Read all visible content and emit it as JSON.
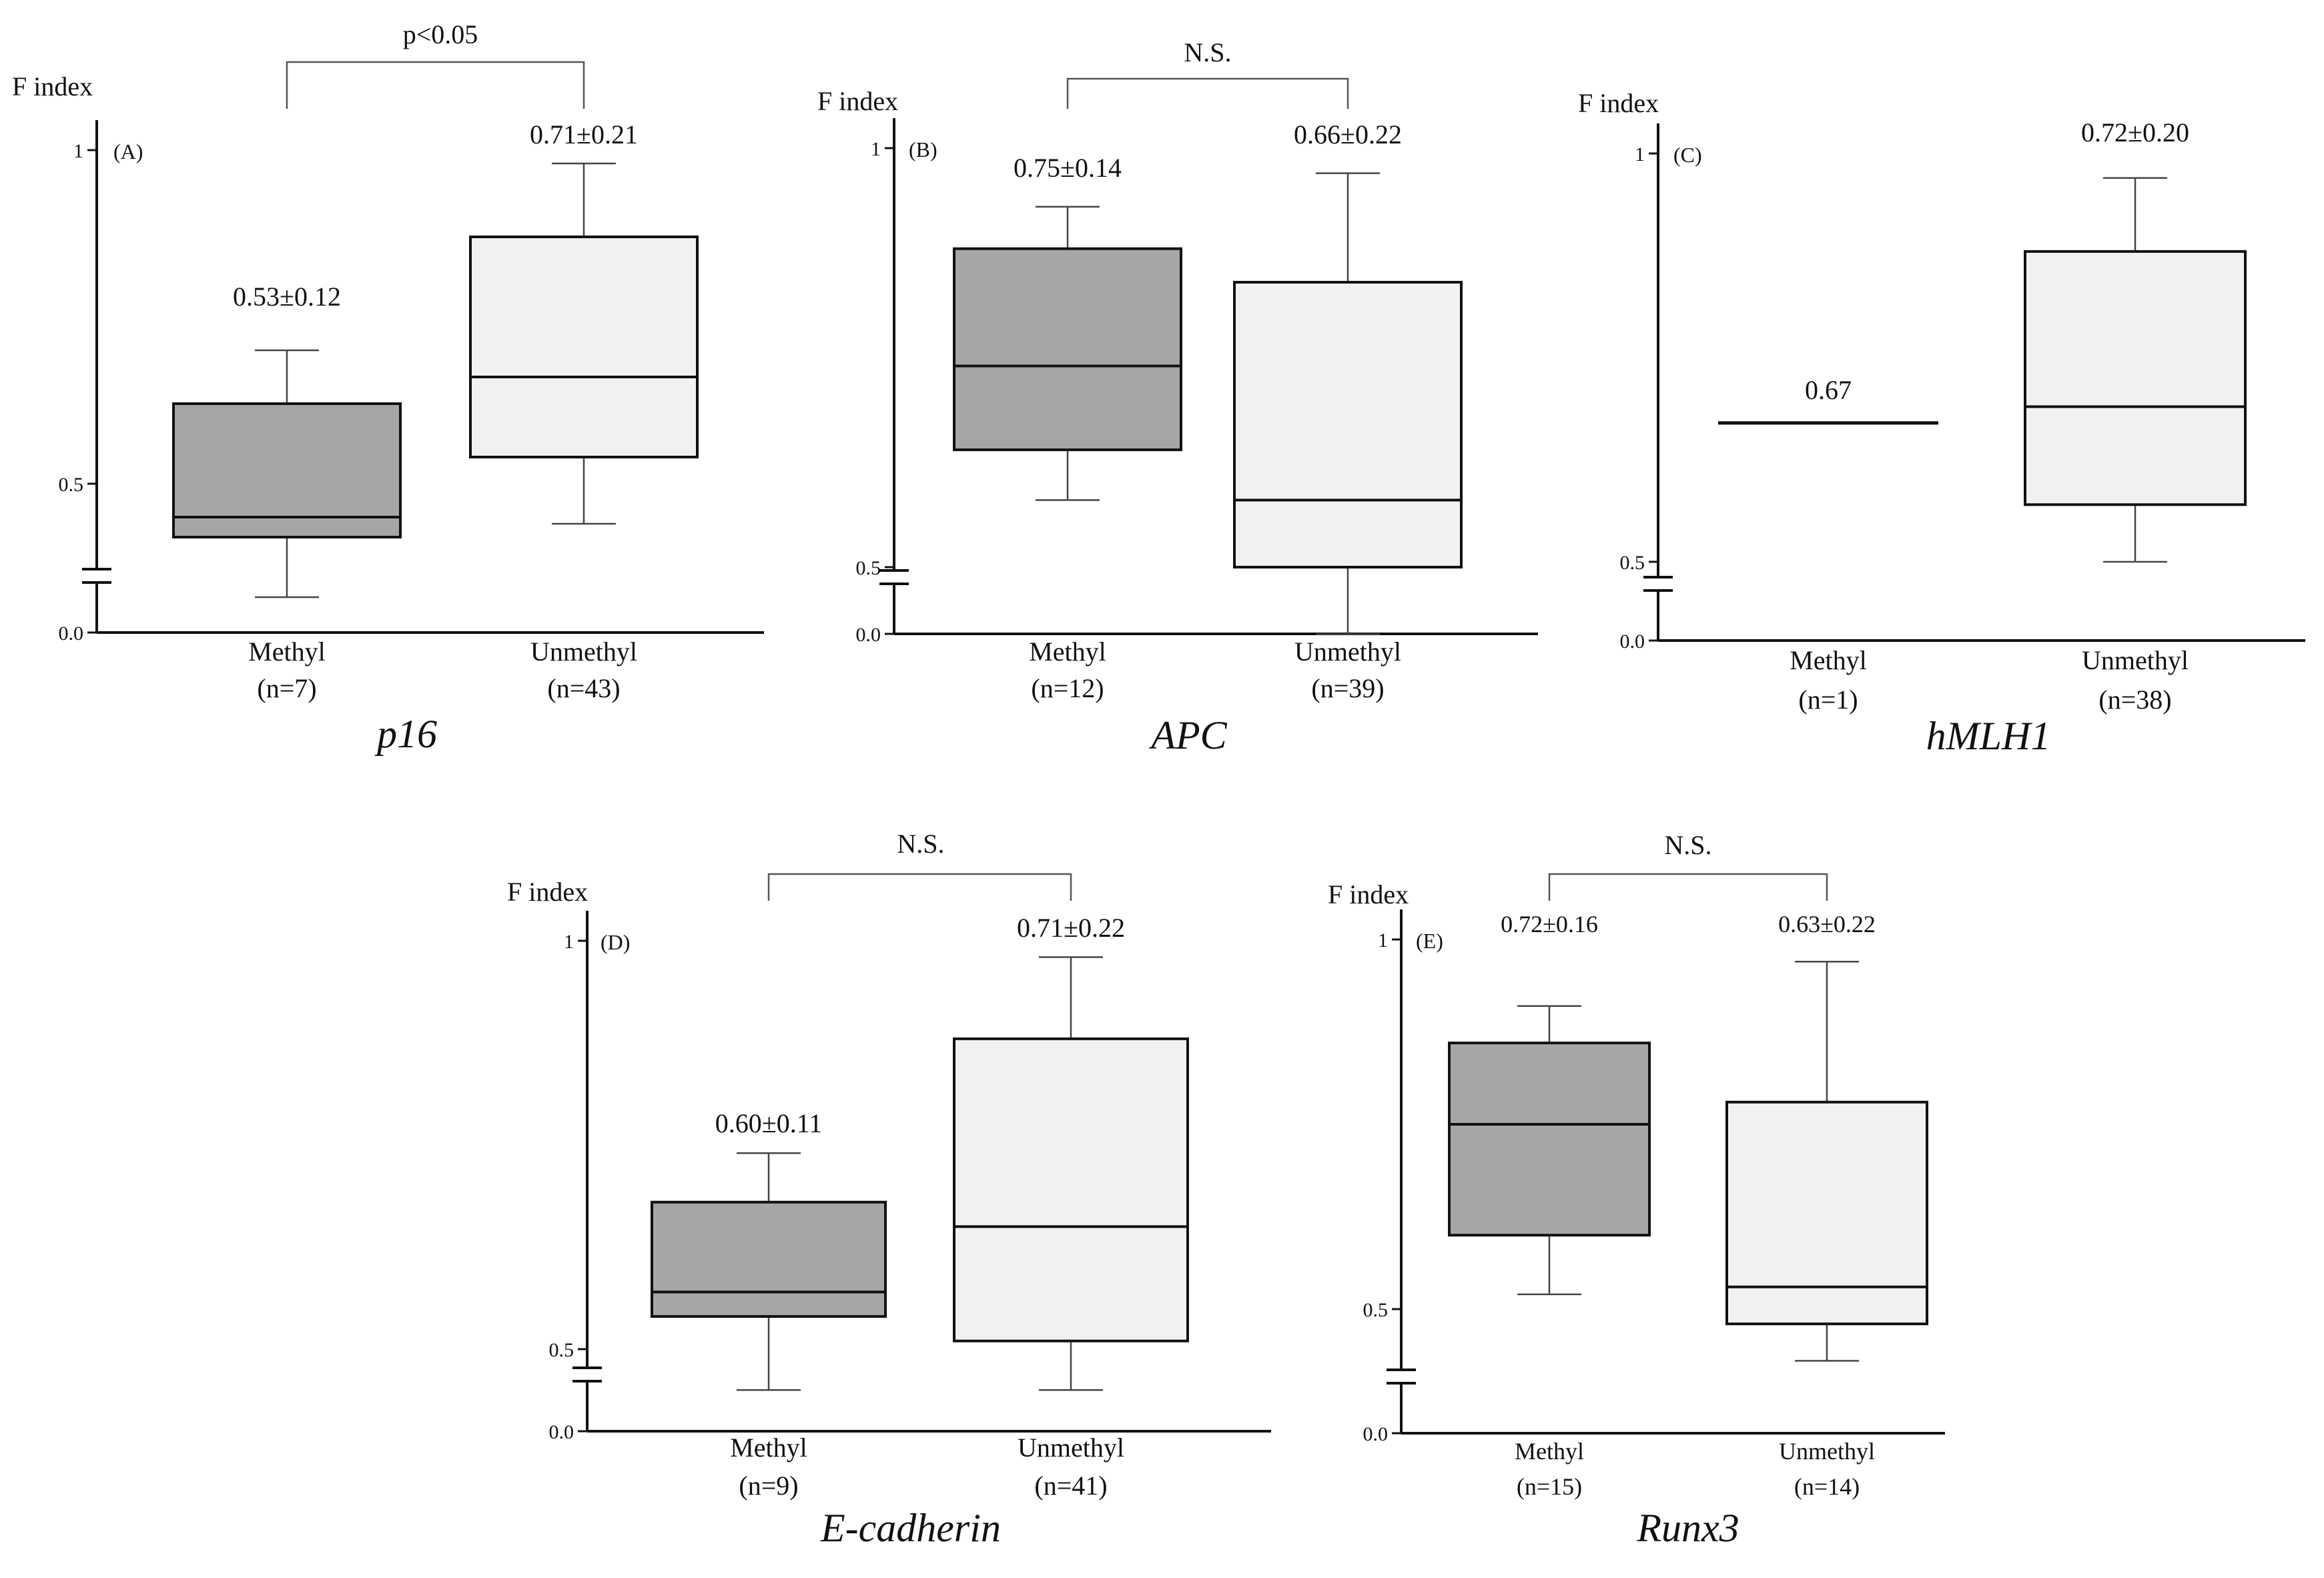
{
  "figure": {
    "ylabel": "F index"
  },
  "colors": {
    "methyl_fill": "#a6a6a6",
    "unmethyl_fill": "#f1f1f1",
    "stroke": "#111111",
    "bracket": "#555555"
  },
  "chart_data": [
    {
      "type": "box",
      "panel_label": "(A)",
      "gene": "p16",
      "ylabel": "F index",
      "yticks": [
        "1",
        "0.5",
        "0.0"
      ],
      "significance": "p<0.05",
      "axis_break": true,
      "groups": [
        {
          "name": "Methyl",
          "n_label": "(n=7)",
          "annotation": "0.53±0.12",
          "whisker_low": 0.33,
          "q1": 0.42,
          "median": 0.45,
          "q3": 0.62,
          "whisker_high": 0.7
        },
        {
          "name": "Unmethyl",
          "n_label": "(n=43)",
          "annotation": "0.71±0.21",
          "whisker_low": 0.44,
          "q1": 0.54,
          "median": 0.66,
          "q3": 0.87,
          "whisker_high": 0.98
        }
      ]
    },
    {
      "type": "box",
      "panel_label": "(B)",
      "gene": "APC",
      "ylabel": "F index",
      "yticks": [
        "1",
        "0.5",
        "0.0"
      ],
      "significance": "N.S.",
      "axis_break": true,
      "groups": [
        {
          "name": "Methyl",
          "n_label": "(n=12)",
          "annotation": "0.75±0.14",
          "whisker_low": 0.58,
          "q1": 0.64,
          "median": 0.74,
          "q3": 0.88,
          "whisker_high": 0.93
        },
        {
          "name": "Unmethyl",
          "n_label": "(n=39)",
          "annotation": "0.66±0.22",
          "whisker_low": 0.42,
          "q1": 0.5,
          "median": 0.58,
          "q3": 0.84,
          "whisker_high": 0.97
        }
      ]
    },
    {
      "type": "box",
      "panel_label": "(C)",
      "gene": "hMLH1",
      "ylabel": "F index",
      "yticks": [
        "1",
        "0.5",
        "0.0"
      ],
      "significance": "",
      "axis_break": true,
      "groups": [
        {
          "name": "Methyl",
          "n_label": "(n=1)",
          "annotation": "0.67",
          "single_value": 0.67
        },
        {
          "name": "Unmethyl",
          "n_label": "(n=38)",
          "annotation": "0.72±0.20",
          "whisker_low": 0.5,
          "q1": 0.57,
          "median": 0.69,
          "q3": 0.88,
          "whisker_high": 0.97
        }
      ]
    },
    {
      "type": "box",
      "panel_label": "(D)",
      "gene": "E-cadherin",
      "ylabel": "F index",
      "yticks": [
        "1",
        "0.5",
        "0.0"
      ],
      "significance": "N.S.",
      "axis_break": true,
      "groups": [
        {
          "name": "Methyl",
          "n_label": "(n=9)",
          "annotation": "0.60±0.11",
          "whisker_low": 0.45,
          "q1": 0.54,
          "median": 0.57,
          "q3": 0.68,
          "whisker_high": 0.74
        },
        {
          "name": "Unmethyl",
          "n_label": "(n=41)",
          "annotation": "0.71±0.22",
          "whisker_low": 0.45,
          "q1": 0.51,
          "median": 0.65,
          "q3": 0.88,
          "whisker_high": 0.98
        }
      ]
    },
    {
      "type": "box",
      "panel_label": "(E)",
      "gene": "Runx3",
      "ylabel": "F index",
      "yticks": [
        "1",
        "0.5",
        "0.0"
      ],
      "significance": "N.S.",
      "axis_break": true,
      "groups": [
        {
          "name": "Methyl",
          "n_label": "(n=15)",
          "annotation": "0.72±0.16",
          "whisker_low": 0.52,
          "q1": 0.6,
          "median": 0.75,
          "q3": 0.86,
          "whisker_high": 0.91
        },
        {
          "name": "Unmethyl",
          "n_label": "(n=14)",
          "annotation": "0.63±0.22",
          "whisker_low": 0.43,
          "q1": 0.48,
          "median": 0.53,
          "q3": 0.78,
          "whisker_high": 0.97
        }
      ]
    }
  ]
}
